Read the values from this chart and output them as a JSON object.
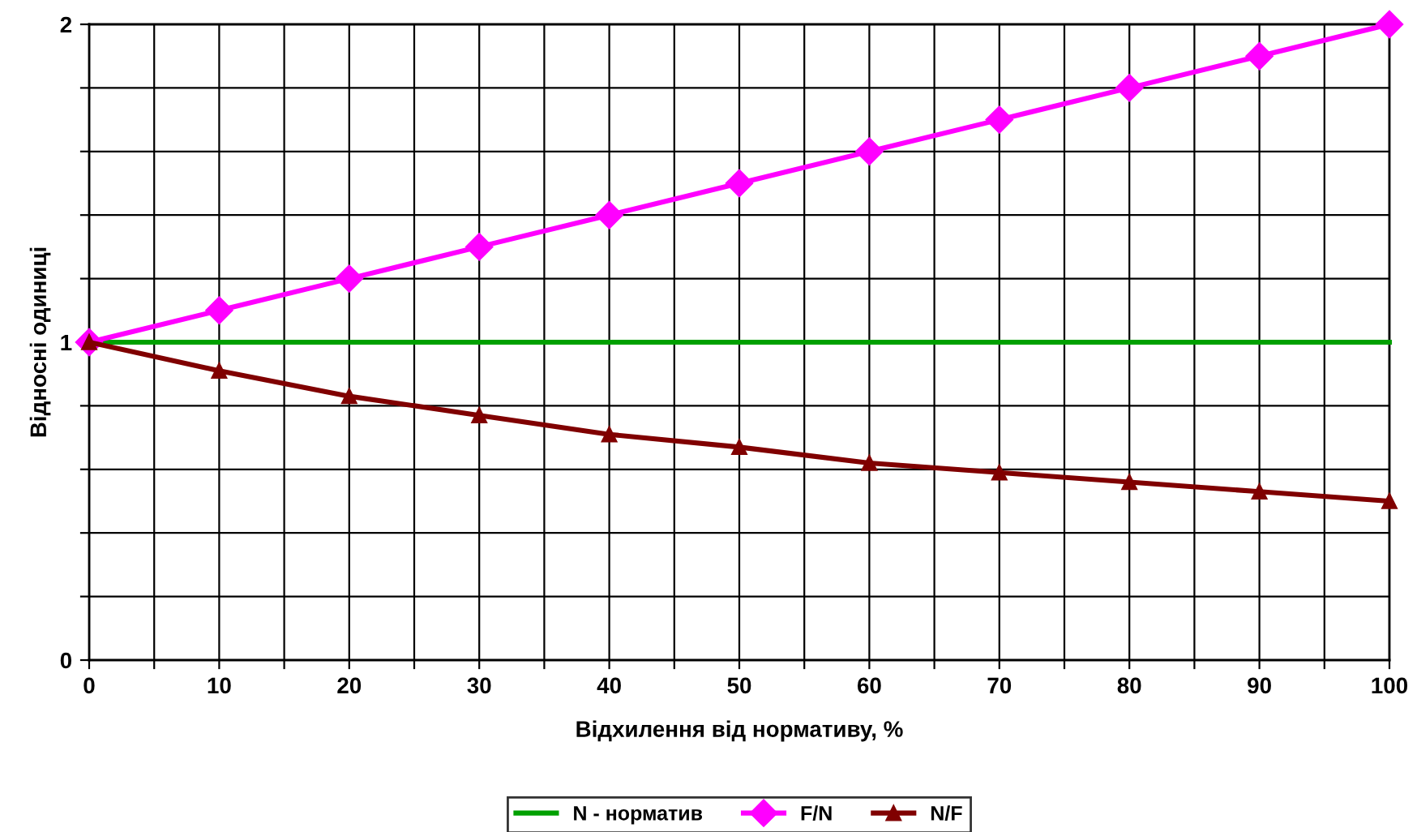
{
  "chart_data": {
    "type": "line",
    "xlabel": "Відхилення від нормативу, %",
    "ylabel": "Відносні одиниці",
    "x": [
      0,
      10,
      20,
      30,
      40,
      50,
      60,
      70,
      80,
      90,
      100
    ],
    "series": [
      {
        "name": "N - норматив",
        "color": "#00a000",
        "marker": "none",
        "values": [
          1,
          1,
          1,
          1,
          1,
          1,
          1,
          1,
          1,
          1,
          1
        ]
      },
      {
        "name": "F/N",
        "color": "#ff00ff",
        "marker": "diamond",
        "values": [
          1,
          1.1,
          1.2,
          1.3,
          1.4,
          1.5,
          1.6,
          1.7,
          1.8,
          1.9,
          2
        ]
      },
      {
        "name": "N/F",
        "color": "#800000",
        "marker": "triangle",
        "values": [
          1,
          0.91,
          0.83,
          0.77,
          0.71,
          0.67,
          0.62,
          0.59,
          0.56,
          0.53,
          0.5
        ]
      }
    ],
    "xlim": [
      0,
      100
    ],
    "ylim": [
      0,
      2
    ],
    "xticks": [
      0,
      {
        "value": 5,
        "label": null
      },
      10,
      {
        "value": 15,
        "label": null
      },
      20,
      {
        "value": 25,
        "label": null
      },
      30,
      {
        "value": 35,
        "label": null
      },
      40,
      {
        "value": 45,
        "label": null
      },
      50,
      {
        "value": 55,
        "label": null
      },
      60,
      {
        "value": 65,
        "label": null
      },
      70,
      {
        "value": 75,
        "label": null
      },
      80,
      {
        "value": 85,
        "label": null
      },
      90,
      {
        "value": 95,
        "label": null
      },
      100
    ],
    "yticks": [
      0,
      {
        "value": 0.2,
        "label": null
      },
      {
        "value": 0.4,
        "label": null
      },
      {
        "value": 0.6,
        "label": null
      },
      {
        "value": 0.8,
        "label": null
      },
      1,
      {
        "value": 1.2,
        "label": null
      },
      {
        "value": 1.4,
        "label": null
      },
      {
        "value": 1.6,
        "label": null
      },
      {
        "value": 1.8,
        "label": null
      },
      2
    ],
    "grid": true,
    "legend": "bottom",
    "line_style": "solid"
  }
}
